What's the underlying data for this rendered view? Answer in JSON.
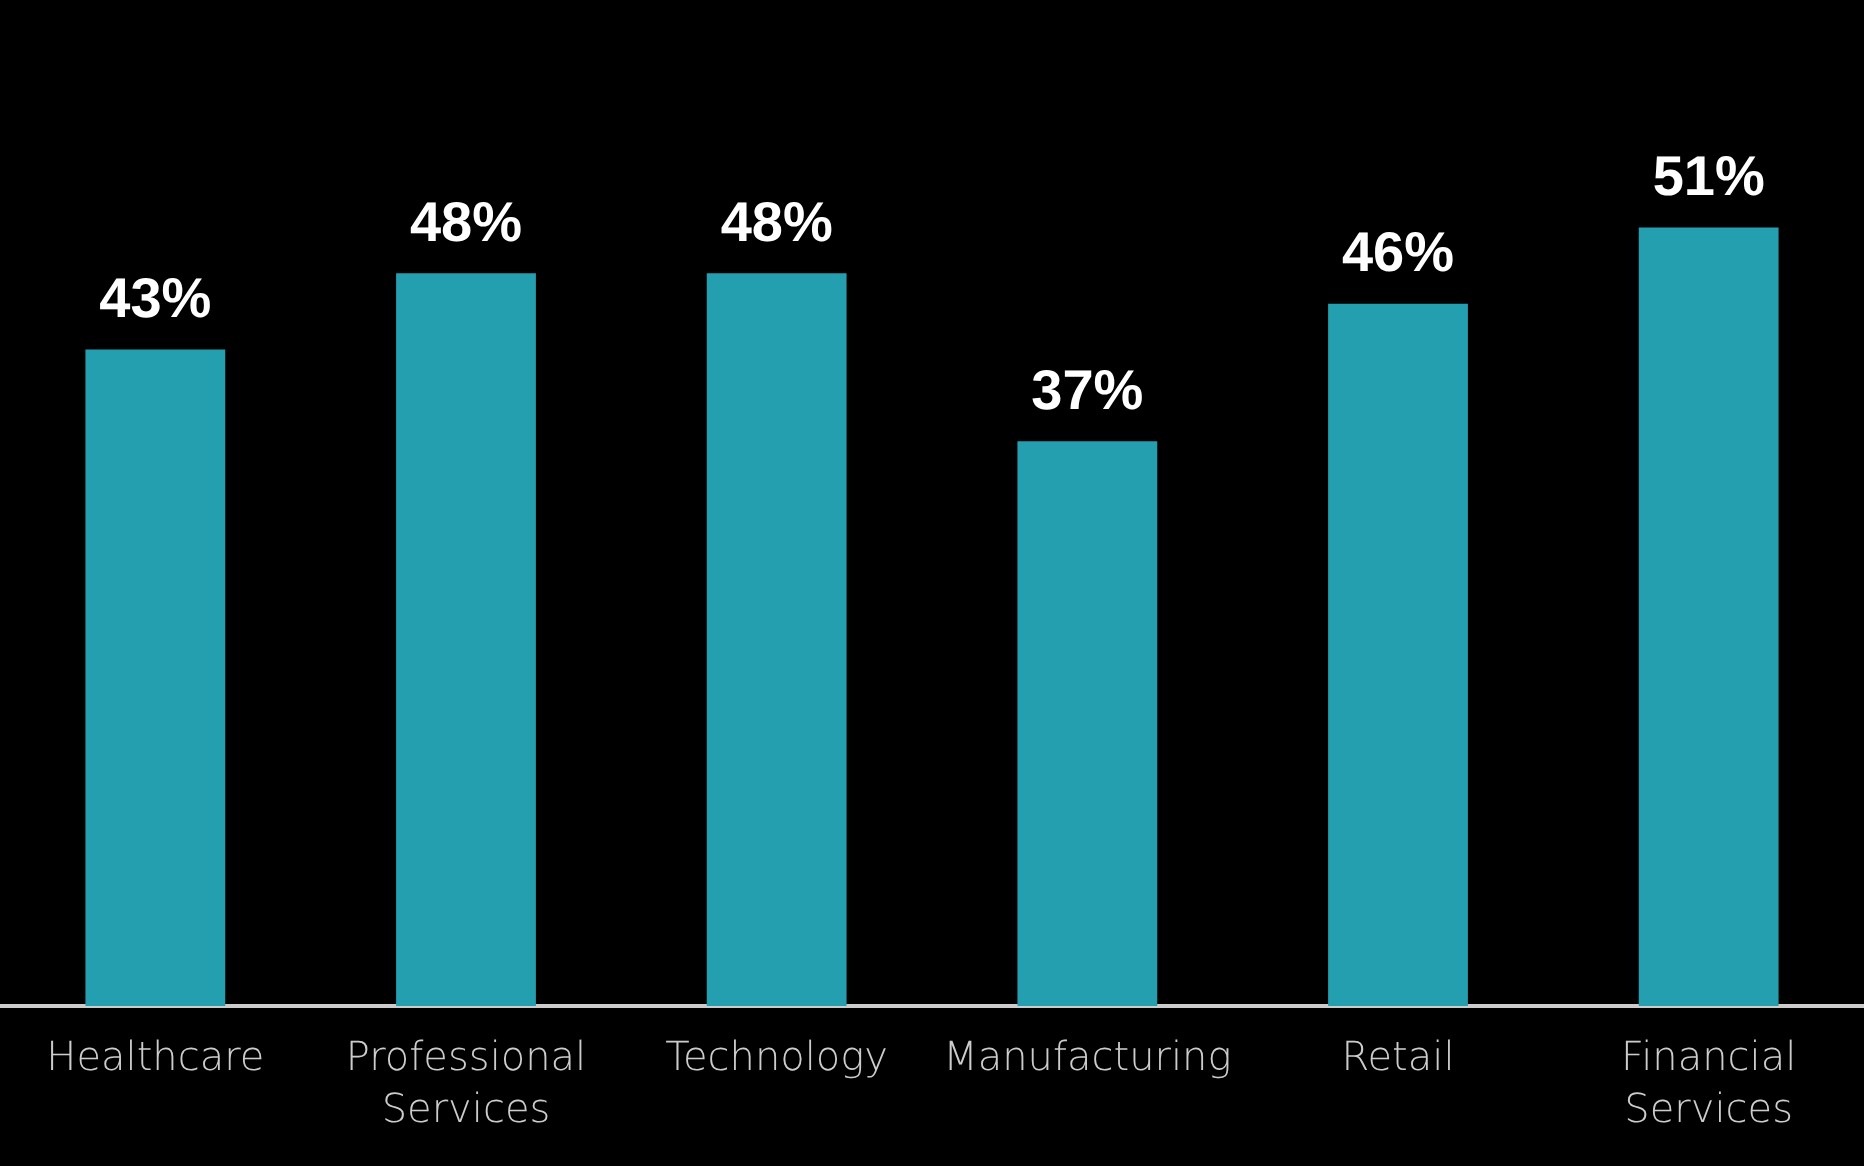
{
  "chart_data": {
    "type": "bar",
    "categories": [
      "Healthcare",
      "Professional Services",
      "Technology",
      "Manufacturing",
      "Retail",
      "Financial Services"
    ],
    "values": [
      43,
      48,
      48,
      37,
      46,
      51
    ],
    "color": "#239fb0",
    "data_labels": true,
    "value_labels": [
      "43%",
      "48%",
      "48%",
      "37%",
      "46%",
      "51%"
    ],
    "tick_labels": "x"
  }
}
